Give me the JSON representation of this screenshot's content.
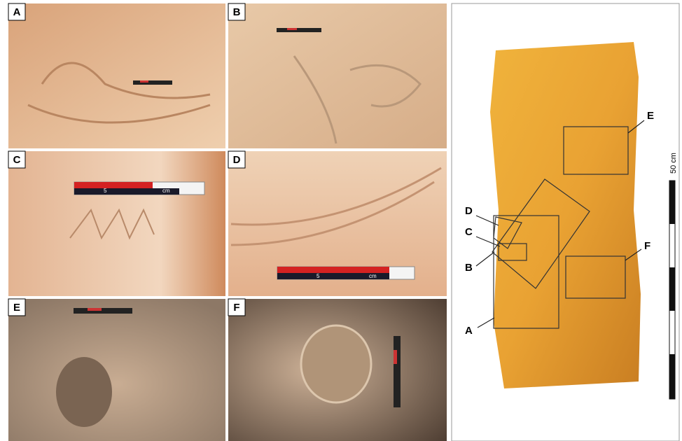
{
  "panels": [
    {
      "label": "A"
    },
    {
      "label": "B"
    },
    {
      "label": "C"
    },
    {
      "label": "D"
    },
    {
      "label": "E"
    },
    {
      "label": "F"
    }
  ],
  "scales": [
    {
      "number": "5",
      "unit": "cm"
    },
    {
      "number": "5",
      "unit": "cm"
    }
  ],
  "overview": {
    "scale_label": "50 cm",
    "region_labels": [
      "E",
      "D",
      "C",
      "F",
      "B",
      "A"
    ]
  }
}
